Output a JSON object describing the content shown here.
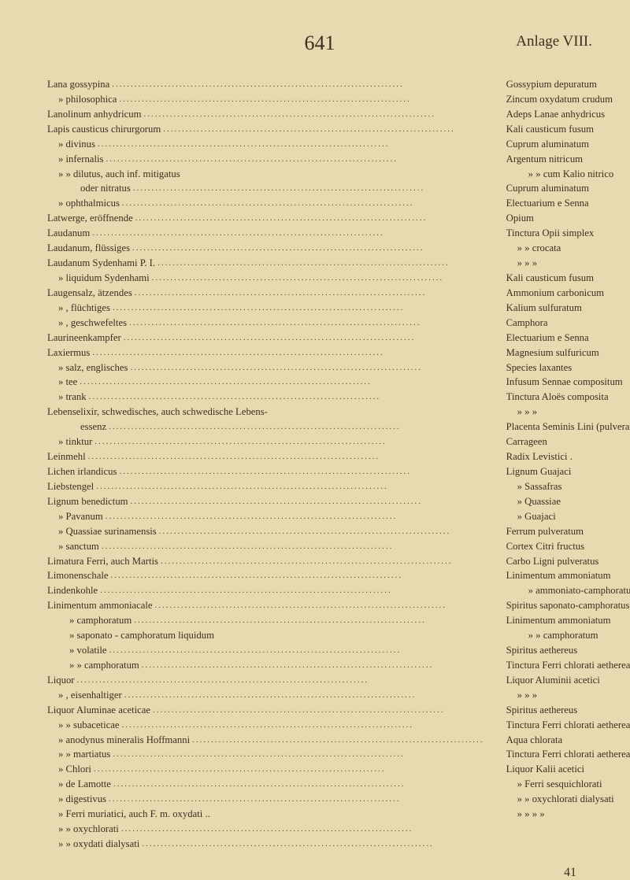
{
  "page_number": "641",
  "header_right": "Anlage VIII.",
  "footer_number": "41",
  "left_column": [
    {
      "t": "Lana gossypina",
      "i": 0,
      "d": 1
    },
    {
      "t": "»    philosophica",
      "i": 1,
      "d": 1
    },
    {
      "t": "Lanolinum anhydricum",
      "i": 0,
      "d": 1
    },
    {
      "t": "Lapis causticus chirurgorum",
      "i": 0,
      "d": 1
    },
    {
      "t": "»    divinus",
      "i": 1,
      "d": 1
    },
    {
      "t": "»    infernalis",
      "i": 1,
      "d": 1
    },
    {
      "t": "»      »    dilutus,  auch  inf.  mitigatus",
      "i": 1,
      "d": 0
    },
    {
      "t": "oder  nitratus",
      "i": 3,
      "d": 1
    },
    {
      "t": "»    ophthalmicus",
      "i": 1,
      "d": 1
    },
    {
      "t": "Latwerge, eröffnende",
      "i": 0,
      "d": 1
    },
    {
      "t": "Laudanum",
      "i": 0,
      "d": 1
    },
    {
      "t": "Laudanum, flüssiges",
      "i": 0,
      "d": 1
    },
    {
      "t": "Laudanum Sydenhami P. I.",
      "i": 0,
      "d": 1
    },
    {
      "t": "»        liquidum Sydenhami",
      "i": 1,
      "d": 1
    },
    {
      "t": "Laugensalz, ätzendes",
      "i": 0,
      "d": 1
    },
    {
      "t": "»    , flüchtiges",
      "i": 1,
      "d": 1
    },
    {
      "t": "»    , geschwefeltes",
      "i": 1,
      "d": 1
    },
    {
      "t": "Laurineenkampfer",
      "i": 0,
      "d": 1
    },
    {
      "t": "Laxiermus",
      "i": 0,
      "d": 1
    },
    {
      "t": "»   salz, englisches",
      "i": 1,
      "d": 1
    },
    {
      "t": "»   tee",
      "i": 1,
      "d": 1
    },
    {
      "t": "»   trank",
      "i": 1,
      "d": 1
    },
    {
      "t": "Lebenselixir, schwedisches, auch schwedische Lebens-",
      "i": 0,
      "d": 0
    },
    {
      "t": "essenz",
      "i": 3,
      "d": 1
    },
    {
      "t": "»   tinktur",
      "i": 1,
      "d": 1
    },
    {
      "t": "Leinmehl",
      "i": 0,
      "d": 1
    },
    {
      "t": "Lichen irlandicus",
      "i": 0,
      "d": 1
    },
    {
      "t": "Liebstengel",
      "i": 0,
      "d": 1
    },
    {
      "t": "Lignum benedictum",
      "i": 0,
      "d": 1
    },
    {
      "t": "»    Pavanum",
      "i": 1,
      "d": 1
    },
    {
      "t": "»    Quassiae surinamensis",
      "i": 1,
      "d": 1
    },
    {
      "t": "»    sanctum",
      "i": 1,
      "d": 1
    },
    {
      "t": "Limatura Ferri, auch Martis",
      "i": 0,
      "d": 1
    },
    {
      "t": "Limonenschale",
      "i": 0,
      "d": 1
    },
    {
      "t": "Lindenkohle",
      "i": 0,
      "d": 1
    },
    {
      "t": "Linimentum ammoniacale",
      "i": 0,
      "d": 1
    },
    {
      "t": "»        camphoratum",
      "i": 2,
      "d": 1
    },
    {
      "t": "»        saponato - camphoratum  liquidum",
      "i": 2,
      "d": 0
    },
    {
      "t": "»        volatile",
      "i": 2,
      "d": 1
    },
    {
      "t": "»          »    camphoratum",
      "i": 2,
      "d": 1
    },
    {
      "t": "Liquor",
      "i": 0,
      "d": 1
    },
    {
      "t": "»   , eisenhaltiger",
      "i": 1,
      "d": 1
    },
    {
      "t": "Liquor Aluminae aceticae",
      "i": 0,
      "d": 1
    },
    {
      "t": "»      »      subaceticae",
      "i": 1,
      "d": 1
    },
    {
      "t": "»    anodynus mineralis Hoffmanni",
      "i": 1,
      "d": 1
    },
    {
      "t": "»      »      martiatus",
      "i": 1,
      "d": 1
    },
    {
      "t": "»    Chlori",
      "i": 1,
      "d": 1
    },
    {
      "t": "»    de Lamotte",
      "i": 1,
      "d": 1
    },
    {
      "t": "»    digestivus",
      "i": 1,
      "d": 1
    },
    {
      "t": "»    Ferri muriatici, auch F. m. oxydati ..",
      "i": 1,
      "d": 0
    },
    {
      "t": "»      »   oxychlorati",
      "i": 1,
      "d": 1
    },
    {
      "t": "»      »   oxydati dialysati",
      "i": 1,
      "d": 1
    }
  ],
  "right_column": [
    {
      "t": "Gossypium depuratum",
      "i": 0,
      "d": 0
    },
    {
      "t": "Zincum oxydatum crudum",
      "i": 0,
      "d": 0
    },
    {
      "t": "Adeps Lanae anhydricus",
      "i": 0,
      "d": 0
    },
    {
      "t": "Kali causticum fusum",
      "i": 0,
      "d": 0
    },
    {
      "t": "Cuprum aluminatum",
      "i": 0,
      "d": 0
    },
    {
      "t": "Argentum nitricum",
      "i": 0,
      "d": 0
    },
    {
      "t": " ",
      "i": 0,
      "d": 0
    },
    {
      "t": "»          »      cum Kalio nitrico",
      "i": 2,
      "d": 0
    },
    {
      "t": "Cuprum aluminatum",
      "i": 0,
      "d": 0
    },
    {
      "t": "Electuarium e Senna",
      "i": 0,
      "d": 0
    },
    {
      "t": "Opium",
      "i": 0,
      "d": 0
    },
    {
      "t": "Tinctura Opii simplex",
      "i": 0,
      "d": 0
    },
    {
      "t": "»       »    crocata",
      "i": 1,
      "d": 0
    },
    {
      "t": "»       »      »",
      "i": 1,
      "d": 0
    },
    {
      "t": "Kali causticum fusum",
      "i": 0,
      "d": 0
    },
    {
      "t": "Ammonium carbonicum",
      "i": 0,
      "d": 0
    },
    {
      "t": "Kalium sulfuratum",
      "i": 0,
      "d": 0
    },
    {
      "t": "Camphora",
      "i": 0,
      "d": 0
    },
    {
      "t": "Electuarium e Senna",
      "i": 0,
      "d": 0
    },
    {
      "t": "Magnesium sulfuricum",
      "i": 0,
      "d": 0
    },
    {
      "t": "Species laxantes",
      "i": 0,
      "d": 0
    },
    {
      "t": "Infusum Sennae compositum",
      "i": 0,
      "d": 0
    },
    {
      "t": " ",
      "i": 0,
      "d": 0
    },
    {
      "t": "Tinctura Aloës composita",
      "i": 0,
      "d": 0
    },
    {
      "t": "»       »       »",
      "i": 1,
      "d": 0
    },
    {
      "t": "Placenta Seminis Lini (pulverata)",
      "i": 0,
      "d": 0
    },
    {
      "t": "Carrageen",
      "i": 0,
      "d": 0
    },
    {
      "t": "Radix Levistici .",
      "i": 0,
      "d": 0
    },
    {
      "t": "Lignum Guajaci",
      "i": 0,
      "d": 0
    },
    {
      "t": "»     Sassafras",
      "i": 1,
      "d": 0
    },
    {
      "t": "»     Quassiae",
      "i": 1,
      "d": 0
    },
    {
      "t": "»     Guajaci",
      "i": 1,
      "d": 0
    },
    {
      "t": "Ferrum pulveratum",
      "i": 0,
      "d": 0
    },
    {
      "t": "Cortex Citri fructus",
      "i": 0,
      "d": 0
    },
    {
      "t": "Carbo Ligni pulveratus",
      "i": 0,
      "d": 0
    },
    {
      "t": "Linimentum ammoniatum",
      "i": 0,
      "d": 0
    },
    {
      "t": "»        ammoniato-camphoratum",
      "i": 2,
      "d": 0
    },
    {
      "t": "Spiritus saponato-camphoratus",
      "i": 0,
      "d": 0
    },
    {
      "t": "Linimentum ammoniatum",
      "i": 0,
      "d": 0
    },
    {
      "t": "»             »       camphoratum",
      "i": 2,
      "d": 0
    },
    {
      "t": "Spiritus aethereus",
      "i": 0,
      "d": 0
    },
    {
      "t": "Tinctura Ferri chlorati aetherea",
      "i": 0,
      "d": 0
    },
    {
      "t": "Liquor Aluminii acetici",
      "i": 0,
      "d": 0
    },
    {
      "t": "»       »       »",
      "i": 1,
      "d": 0
    },
    {
      "t": "Spiritus aethereus",
      "i": 0,
      "d": 0
    },
    {
      "t": "Tinctura Ferri chlorati aetherea",
      "i": 0,
      "d": 0
    },
    {
      "t": "Aqua chlorata",
      "i": 0,
      "d": 0
    },
    {
      "t": "Tinctura Ferri chlorati aetherea",
      "i": 0,
      "d": 0
    },
    {
      "t": "Liquor Kalii acetici",
      "i": 0,
      "d": 0
    },
    {
      "t": "»    Ferri sesquichlorati",
      "i": 1,
      "d": 0
    },
    {
      "t": "»      »    oxychlorati dialysati",
      "i": 1,
      "d": 0
    },
    {
      "t": "»      »        »          »",
      "i": 1,
      "d": 0
    }
  ]
}
